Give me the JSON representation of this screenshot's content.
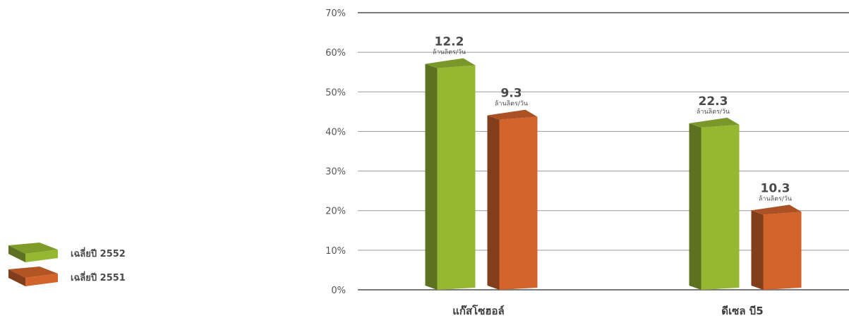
{
  "chart_data": {
    "type": "bar",
    "categories": [
      "แก๊สโซฮอล์",
      "ดีเซล บี5"
    ],
    "series": [
      {
        "name": "เฉลี่ยปี 2552",
        "color": "#95b833",
        "values": [
          56,
          41
        ],
        "labels": [
          "12.2",
          "22.3"
        ],
        "label_unit": "ล้านลิตร/วัน"
      },
      {
        "name": "เฉลี่ยปี 2551",
        "color": "#d2632b",
        "values": [
          43,
          19
        ],
        "labels": [
          "9.3",
          "10.3"
        ],
        "label_unit": "ล้านลิตร/วัน"
      }
    ],
    "y_ticks": [
      "0%",
      "10%",
      "20%",
      "30%",
      "40%",
      "50%",
      "60%",
      "70%"
    ],
    "ylim": [
      0,
      70
    ],
    "grid": true,
    "legend_position": "left",
    "xlabel": "",
    "ylabel": ""
  }
}
